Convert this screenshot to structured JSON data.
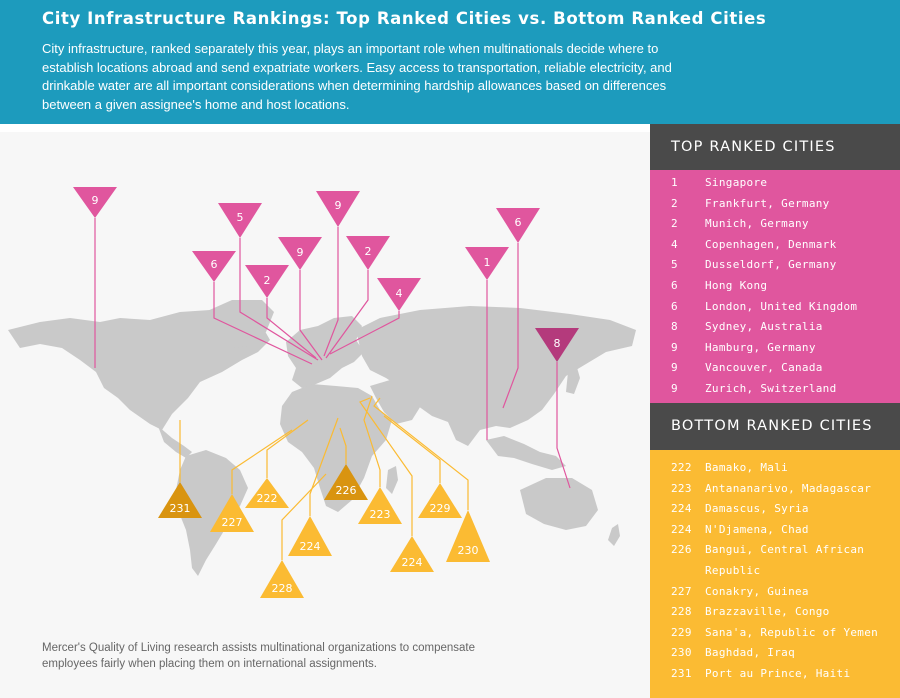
{
  "header": {
    "title": "City Infrastructure Rankings: Top Ranked Cities vs. Bottom Ranked Cities",
    "description": "City infrastructure, ranked separately this year, plays an important role when multinationals decide where to establish locations abroad and send expatriate workers. Easy access to transportation, reliable electricity, and drinkable water are all important considerations when determining hardship allowances based on differences between a given assignee's home and host locations."
  },
  "map": {
    "top_pins": [
      "9",
      "5",
      "9",
      "6",
      "2",
      "9",
      "2",
      "4",
      "1",
      "6",
      "8"
    ],
    "bottom_pins": [
      "231",
      "227",
      "222",
      "228",
      "224",
      "226",
      "223",
      "224",
      "229",
      "230"
    ]
  },
  "top_ranked": {
    "heading": "TOP RANKED CITIES",
    "rows": [
      {
        "rank": "1",
        "city": "Singapore"
      },
      {
        "rank": "2",
        "city": "Frankfurt, Germany"
      },
      {
        "rank": "2",
        "city": "Munich, Germany"
      },
      {
        "rank": "4",
        "city": "Copenhagen, Denmark"
      },
      {
        "rank": "5",
        "city": "Dusseldorf, Germany"
      },
      {
        "rank": "6",
        "city": "Hong Kong"
      },
      {
        "rank": "6",
        "city": "London, United Kingdom"
      },
      {
        "rank": "8",
        "city": "Sydney, Australia"
      },
      {
        "rank": "9",
        "city": "Hamburg, Germany"
      },
      {
        "rank": "9",
        "city": "Vancouver, Canada"
      },
      {
        "rank": "9",
        "city": "Zurich, Switzerland"
      }
    ]
  },
  "bottom_ranked": {
    "heading": "BOTTOM RANKED CITIES",
    "rows": [
      {
        "rank": "222",
        "city": "Bamako, Mali"
      },
      {
        "rank": "223",
        "city": "Antananarivo, Madagascar"
      },
      {
        "rank": "224",
        "city": "Damascus, Syria"
      },
      {
        "rank": "224",
        "city": "N'Djamena, Chad"
      },
      {
        "rank": "226",
        "city": "Bangui, Central African Republic"
      },
      {
        "rank": "227",
        "city": "Conakry, Guinea"
      },
      {
        "rank": "228",
        "city": "Brazzaville, Congo"
      },
      {
        "rank": "229",
        "city": "Sana'a, Republic of Yemen"
      },
      {
        "rank": "230",
        "city": "Baghdad, Iraq"
      },
      {
        "rank": "231",
        "city": "Port au Prince, Haiti"
      }
    ]
  },
  "footnote": "Mercer's Quality of Living research assists multinational organizations to compensate employees fairly when placing them on international assignments.",
  "colors": {
    "header_bg": "#1d9bbd",
    "top_accent": "#e0569e",
    "top_highlight": "#b43a7c",
    "bottom_accent": "#fbbb33",
    "bottom_highlight": "#d99410",
    "panel_heading_bg": "#4a4a4a",
    "map_land": "#c9c9c9"
  }
}
